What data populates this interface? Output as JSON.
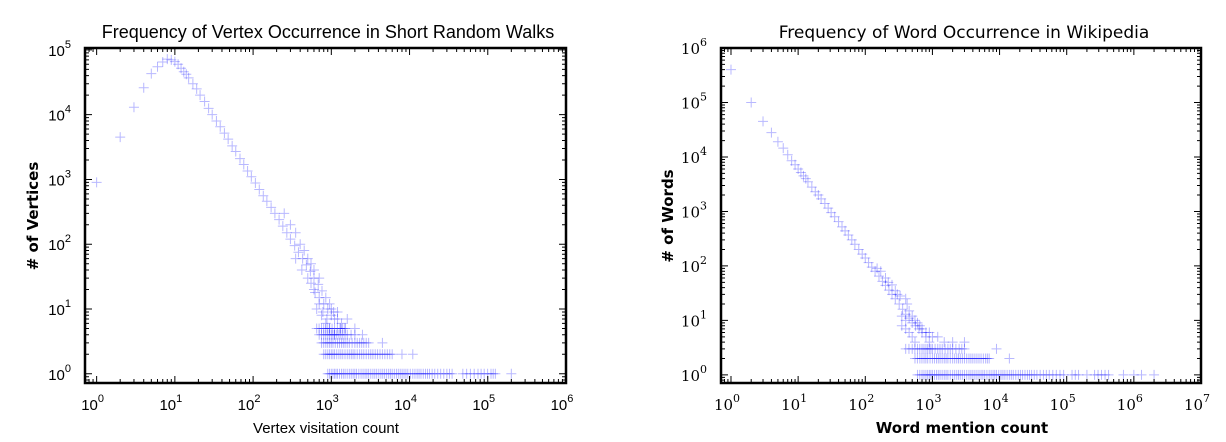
{
  "chart_data": [
    {
      "type": "scatter",
      "title": "Frequency of Vertex Occurrence in Short Random Walks",
      "xlabel": "Vertex visitation count",
      "ylabel": "# of Vertices",
      "xscale": "log",
      "yscale": "log",
      "xlim": [
        0.71,
        1000000
      ],
      "ylim": [
        0.72,
        107000
      ],
      "xtick_exponents": [
        0,
        1,
        2,
        3,
        4,
        5,
        6
      ],
      "ytick_exponents": [
        0,
        1,
        2,
        3,
        4,
        5
      ],
      "marker": "+",
      "color": "#0000ff",
      "points": [
        [
          1,
          900
        ],
        [
          2,
          4500
        ],
        [
          3,
          13000
        ],
        [
          4,
          26000
        ],
        [
          5,
          43000
        ],
        [
          6,
          55000
        ],
        [
          7,
          65000
        ],
        [
          8,
          72000
        ],
        [
          9,
          70000
        ],
        [
          10,
          66000
        ],
        [
          11,
          60000
        ],
        [
          12,
          52000
        ],
        [
          13,
          46000
        ],
        [
          14,
          42000
        ],
        [
          15,
          37000
        ],
        [
          17,
          30000
        ],
        [
          19,
          25000
        ],
        [
          21,
          20000
        ],
        [
          24,
          16000
        ],
        [
          27,
          12500
        ],
        [
          30,
          10000
        ],
        [
          34,
          8000
        ],
        [
          38,
          6500
        ],
        [
          43,
          5200
        ],
        [
          48,
          4200
        ],
        [
          54,
          3300
        ],
        [
          60,
          2700
        ],
        [
          68,
          2100
        ],
        [
          76,
          1700
        ],
        [
          85,
          1350
        ],
        [
          95,
          1100
        ],
        [
          107,
          880
        ],
        [
          120,
          700
        ],
        [
          135,
          560
        ],
        [
          150,
          460
        ],
        [
          170,
          370
        ],
        [
          190,
          300
        ],
        [
          215,
          240
        ],
        [
          240,
          190
        ],
        [
          270,
          150
        ],
        [
          300,
          120
        ],
        [
          340,
          95
        ],
        [
          380,
          75
        ],
        [
          430,
          60
        ],
        [
          480,
          48
        ],
        [
          540,
          38
        ],
        [
          600,
          30
        ],
        [
          680,
          24
        ],
        [
          760,
          19
        ],
        [
          850,
          15
        ],
        [
          950,
          12
        ],
        [
          1070,
          9
        ],
        [
          1200,
          7
        ],
        [
          1350,
          6
        ],
        [
          1500,
          5
        ],
        [
          250,
          300
        ],
        [
          300,
          200
        ],
        [
          350,
          150
        ],
        [
          400,
          100
        ],
        [
          450,
          80
        ],
        [
          500,
          60
        ],
        [
          550,
          50
        ],
        [
          600,
          40
        ],
        [
          700,
          30
        ],
        [
          350,
          60
        ],
        [
          420,
          40
        ],
        [
          500,
          30
        ],
        [
          600,
          20
        ],
        [
          700,
          15
        ],
        [
          800,
          12
        ],
        [
          900,
          10
        ],
        [
          1000,
          8
        ],
        [
          1100,
          7
        ],
        [
          1300,
          5
        ],
        [
          650,
          10
        ],
        [
          750,
          8
        ],
        [
          850,
          6
        ],
        [
          950,
          5
        ],
        [
          1100,
          4
        ],
        [
          2000,
          5
        ],
        [
          2500,
          4
        ],
        [
          550,
          25
        ],
        [
          620,
          18
        ],
        [
          700,
          12
        ],
        [
          780,
          9
        ],
        [
          880,
          7
        ],
        [
          1200,
          9
        ],
        [
          1000,
          10
        ],
        [
          1600,
          7
        ],
        [
          4500,
          3
        ]
      ],
      "rows": [
        {
          "y": 1,
          "x": [
            900,
            1000,
            1100,
            1200,
            1350,
            1500,
            1700,
            1900,
            2100,
            2400,
            2700,
            3000,
            3400,
            3800,
            4300,
            4800,
            5400,
            6000,
            6800,
            7600,
            8500,
            9500,
            11000,
            12500,
            14000,
            16000,
            18000,
            21000,
            25000,
            30000,
            35000,
            48000,
            60000,
            75000,
            90000,
            110000,
            125000,
            200000
          ]
        },
        {
          "y": 2,
          "x": [
            800,
            900,
            1000,
            1100,
            1250,
            1400,
            1600,
            1800,
            2000,
            2300,
            2600,
            3000,
            3400,
            3900,
            4500,
            5200,
            6000,
            8000,
            11000
          ]
        },
        {
          "y": 3,
          "x": [
            750,
            850,
            950,
            1050,
            1200,
            1350,
            1500,
            1700,
            2000,
            2300,
            2600,
            3000
          ]
        },
        {
          "y": 4,
          "x": [
            700,
            800,
            900,
            1000,
            1100,
            1250,
            1400,
            1600,
            2000
          ]
        },
        {
          "y": 5,
          "x": [
            650,
            750,
            850,
            950,
            1100,
            1300,
            1500
          ]
        }
      ]
    },
    {
      "type": "scatter",
      "title": "Frequency of Word Occurrence in Wikipedia",
      "xlabel": "Word mention count",
      "ylabel": "# of Words",
      "xscale": "log",
      "yscale": "log",
      "xlim": [
        0.71,
        10000000
      ],
      "ylim": [
        0.71,
        1000000
      ],
      "xtick_exponents": [
        0,
        1,
        2,
        3,
        4,
        5,
        6,
        7
      ],
      "ytick_exponents": [
        0,
        1,
        2,
        3,
        4,
        5,
        6
      ],
      "marker": "+",
      "color": "#0000ff",
      "points": [
        [
          1,
          400000
        ],
        [
          2,
          100000
        ],
        [
          3,
          45000
        ],
        [
          4,
          28000
        ],
        [
          5,
          19000
        ],
        [
          6,
          14500
        ],
        [
          7,
          11000
        ],
        [
          8,
          8500
        ],
        [
          9,
          7200
        ],
        [
          10,
          6000
        ],
        [
          11,
          5200
        ],
        [
          12,
          4500
        ],
        [
          13,
          4000
        ],
        [
          14,
          3500
        ],
        [
          16,
          2800
        ],
        [
          18,
          2300
        ],
        [
          20,
          2000
        ],
        [
          22,
          1700
        ],
        [
          25,
          1400
        ],
        [
          28,
          1150
        ],
        [
          31,
          950
        ],
        [
          35,
          800
        ],
        [
          40,
          650
        ],
        [
          45,
          520
        ],
        [
          50,
          440
        ],
        [
          56,
          370
        ],
        [
          63,
          300
        ],
        [
          70,
          250
        ],
        [
          80,
          200
        ],
        [
          90,
          165
        ],
        [
          100,
          140
        ],
        [
          112,
          115
        ],
        [
          125,
          95
        ],
        [
          140,
          80
        ],
        [
          160,
          65
        ],
        [
          180,
          52
        ],
        [
          200,
          44
        ],
        [
          225,
          36
        ],
        [
          250,
          30
        ],
        [
          280,
          25
        ],
        [
          320,
          20
        ],
        [
          360,
          16
        ],
        [
          400,
          13
        ],
        [
          450,
          11
        ],
        [
          500,
          9
        ],
        [
          560,
          8
        ],
        [
          630,
          7
        ],
        [
          700,
          6
        ],
        [
          800,
          5
        ],
        [
          900,
          4
        ],
        [
          150,
          90
        ],
        [
          170,
          80
        ],
        [
          200,
          60
        ],
        [
          220,
          50
        ],
        [
          250,
          45
        ],
        [
          280,
          35
        ],
        [
          300,
          30
        ],
        [
          330,
          28
        ],
        [
          400,
          25
        ],
        [
          420,
          20
        ],
        [
          350,
          12
        ],
        [
          400,
          10
        ],
        [
          450,
          15
        ],
        [
          500,
          12
        ],
        [
          550,
          10
        ],
        [
          600,
          9
        ],
        [
          650,
          8
        ],
        [
          700,
          7
        ],
        [
          800,
          6
        ],
        [
          900,
          6
        ],
        [
          1000,
          5
        ],
        [
          1200,
          5
        ],
        [
          1500,
          4
        ],
        [
          2000,
          4
        ],
        [
          3000,
          4
        ],
        [
          350,
          8
        ],
        [
          400,
          7
        ],
        [
          450,
          6
        ],
        [
          500,
          5
        ],
        [
          550,
          4
        ],
        [
          9000,
          3
        ]
      ],
      "rows": [
        {
          "y": 1,
          "x": [
            600,
            700,
            800,
            900,
            1000,
            1150,
            1300,
            1500,
            1700,
            2000,
            2300,
            2600,
            3000,
            3500,
            4000,
            4600,
            5300,
            6000,
            7000,
            8000,
            9000,
            10500,
            12000,
            14000,
            16000,
            19000,
            22000,
            26000,
            30000,
            36000,
            45000,
            55000,
            70000,
            90000,
            120000,
            150000,
            200000,
            260000,
            330000,
            420000,
            700000,
            1000000,
            1300000,
            2000000
          ]
        },
        {
          "y": 2,
          "x": [
            550,
            650,
            750,
            850,
            1000,
            1150,
            1300,
            1500,
            1700,
            2000,
            2300,
            2600,
            3000,
            3500,
            4000,
            4600,
            5300,
            6200,
            7000,
            14000
          ]
        },
        {
          "y": 3,
          "x": [
            400,
            500,
            600,
            700,
            800,
            900,
            1000,
            1200,
            1400,
            1700,
            2000,
            2500,
            3000
          ]
        }
      ]
    }
  ]
}
